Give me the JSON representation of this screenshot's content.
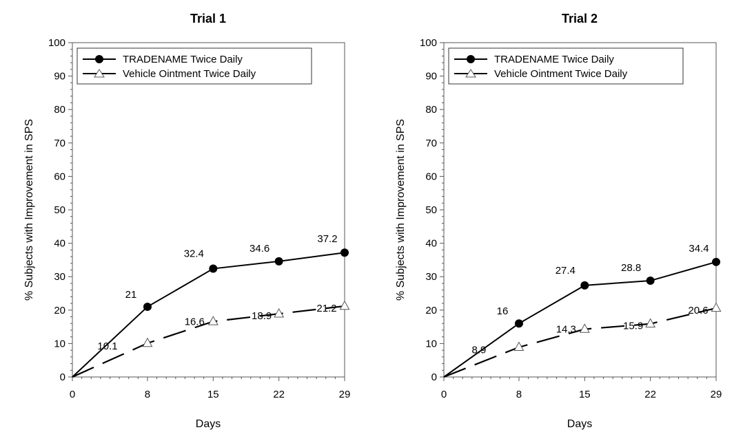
{
  "chart_data": [
    {
      "type": "line",
      "title": "Trial 1",
      "xlabel": "Days",
      "ylabel": "% Subjects with Improvement in SPS",
      "x": [
        0,
        8,
        15,
        22,
        29
      ],
      "xticks": [
        "0",
        "8",
        "15",
        "22",
        "29"
      ],
      "xlim": [
        0,
        29
      ],
      "ylim": [
        0,
        100
      ],
      "yticks": [
        "0",
        "10",
        "20",
        "30",
        "40",
        "50",
        "60",
        "70",
        "80",
        "90",
        "100"
      ],
      "grid": false,
      "legend_position": "top-left",
      "series": [
        {
          "name": "TRADENAME Twice Daily",
          "values": [
            0,
            21,
            32.4,
            34.6,
            37.2
          ],
          "labels": [
            "",
            "21",
            "32.4",
            "34.6",
            "37.2"
          ],
          "marker": "filled-circle",
          "line": "solid",
          "color": "#000000"
        },
        {
          "name": "Vehicle Ointment Twice Daily",
          "values": [
            0,
            10.1,
            16.6,
            18.9,
            21.2
          ],
          "labels": [
            "",
            "10.1",
            "16.6",
            "18.9",
            "21.2"
          ],
          "marker": "open-triangle",
          "line": "dashed",
          "color": "#000000"
        }
      ]
    },
    {
      "type": "line",
      "title": "Trial 2",
      "xlabel": "Days",
      "ylabel": "% Subjects with Improvement in SPS",
      "x": [
        0,
        8,
        15,
        22,
        29
      ],
      "xticks": [
        "0",
        "8",
        "15",
        "22",
        "29"
      ],
      "xlim": [
        0,
        29
      ],
      "ylim": [
        0,
        100
      ],
      "yticks": [
        "0",
        "10",
        "20",
        "30",
        "40",
        "50",
        "60",
        "70",
        "80",
        "90",
        "100"
      ],
      "grid": false,
      "legend_position": "top-left",
      "series": [
        {
          "name": "TRADENAME Twice Daily",
          "values": [
            0,
            16,
            27.4,
            28.8,
            34.4
          ],
          "labels": [
            "",
            "16",
            "27.4",
            "28.8",
            "34.4"
          ],
          "marker": "filled-circle",
          "line": "solid",
          "color": "#000000"
        },
        {
          "name": "Vehicle Ointment Twice Daily",
          "values": [
            0,
            8.9,
            14.3,
            15.9,
            20.6
          ],
          "labels": [
            "",
            "8.9",
            "14.3",
            "15.9",
            "20.6"
          ],
          "marker": "open-triangle",
          "line": "dashed",
          "color": "#000000"
        }
      ]
    }
  ]
}
